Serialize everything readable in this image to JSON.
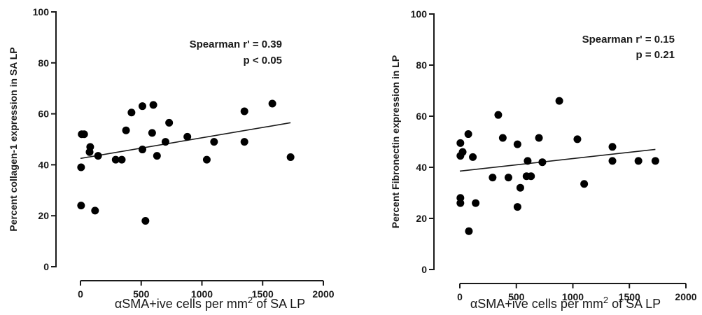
{
  "chart_data": [
    {
      "type": "scatter",
      "ylabel": "Percent collagen-1 expression in SA LP",
      "xlabel_pre": "αSMA+ive cells per mm",
      "xlabel_sup": "2",
      "xlabel_post": " of SA LP",
      "xlim": [
        0,
        2000
      ],
      "ylim": [
        0,
        100
      ],
      "xticks": [
        0,
        500,
        1000,
        1500,
        2000
      ],
      "yticks": [
        0,
        20,
        40,
        60,
        80,
        100
      ],
      "annotations": [
        "Spearman r' = 0.39",
        "p < 0.05"
      ],
      "trendline": {
        "x": [
          0,
          1730
        ],
        "y": [
          42.5,
          56.5
        ]
      },
      "points": [
        {
          "x": 5,
          "y": 39
        },
        {
          "x": 5,
          "y": 24
        },
        {
          "x": 10,
          "y": 52
        },
        {
          "x": 30,
          "y": 52
        },
        {
          "x": 75,
          "y": 45
        },
        {
          "x": 80,
          "y": 47
        },
        {
          "x": 120,
          "y": 22
        },
        {
          "x": 145,
          "y": 43.5
        },
        {
          "x": 290,
          "y": 42
        },
        {
          "x": 340,
          "y": 42
        },
        {
          "x": 375,
          "y": 53.5
        },
        {
          "x": 420,
          "y": 60.5
        },
        {
          "x": 510,
          "y": 63
        },
        {
          "x": 510,
          "y": 46
        },
        {
          "x": 535,
          "y": 18
        },
        {
          "x": 590,
          "y": 52.5
        },
        {
          "x": 600,
          "y": 63.5
        },
        {
          "x": 630,
          "y": 43.5
        },
        {
          "x": 700,
          "y": 49
        },
        {
          "x": 730,
          "y": 56.5
        },
        {
          "x": 880,
          "y": 51
        },
        {
          "x": 1040,
          "y": 42
        },
        {
          "x": 1100,
          "y": 49
        },
        {
          "x": 1350,
          "y": 61
        },
        {
          "x": 1350,
          "y": 49
        },
        {
          "x": 1580,
          "y": 64
        },
        {
          "x": 1730,
          "y": 43
        }
      ]
    },
    {
      "type": "scatter",
      "ylabel": "Percent Fibronectin expression in LP",
      "xlabel_pre": "αSMA+ive cells per mm",
      "xlabel_sup": "2",
      "xlabel_post": " of SA LP",
      "xlim": [
        0,
        2000
      ],
      "ylim": [
        0,
        100
      ],
      "xticks": [
        0,
        500,
        1000,
        1500,
        2000
      ],
      "yticks": [
        0,
        20,
        40,
        60,
        80,
        100
      ],
      "annotations": [
        "Spearman r' = 0.15",
        "p = 0.21"
      ],
      "trendline": {
        "x": [
          0,
          1730
        ],
        "y": [
          38.5,
          47
        ]
      },
      "points": [
        {
          "x": 5,
          "y": 49.5
        },
        {
          "x": 5,
          "y": 44.5
        },
        {
          "x": 5,
          "y": 28
        },
        {
          "x": 5,
          "y": 26
        },
        {
          "x": 25,
          "y": 46
        },
        {
          "x": 75,
          "y": 53
        },
        {
          "x": 80,
          "y": 15
        },
        {
          "x": 115,
          "y": 44
        },
        {
          "x": 140,
          "y": 26
        },
        {
          "x": 290,
          "y": 36
        },
        {
          "x": 340,
          "y": 60.5
        },
        {
          "x": 380,
          "y": 51.5
        },
        {
          "x": 430,
          "y": 36
        },
        {
          "x": 510,
          "y": 49
        },
        {
          "x": 510,
          "y": 24.5
        },
        {
          "x": 535,
          "y": 32
        },
        {
          "x": 590,
          "y": 36.5
        },
        {
          "x": 600,
          "y": 42.5
        },
        {
          "x": 630,
          "y": 36.5
        },
        {
          "x": 700,
          "y": 51.5
        },
        {
          "x": 730,
          "y": 42
        },
        {
          "x": 880,
          "y": 66
        },
        {
          "x": 1040,
          "y": 51
        },
        {
          "x": 1100,
          "y": 33.5
        },
        {
          "x": 1350,
          "y": 48
        },
        {
          "x": 1350,
          "y": 42.5
        },
        {
          "x": 1580,
          "y": 42.5
        },
        {
          "x": 1730,
          "y": 42.5
        }
      ]
    }
  ]
}
